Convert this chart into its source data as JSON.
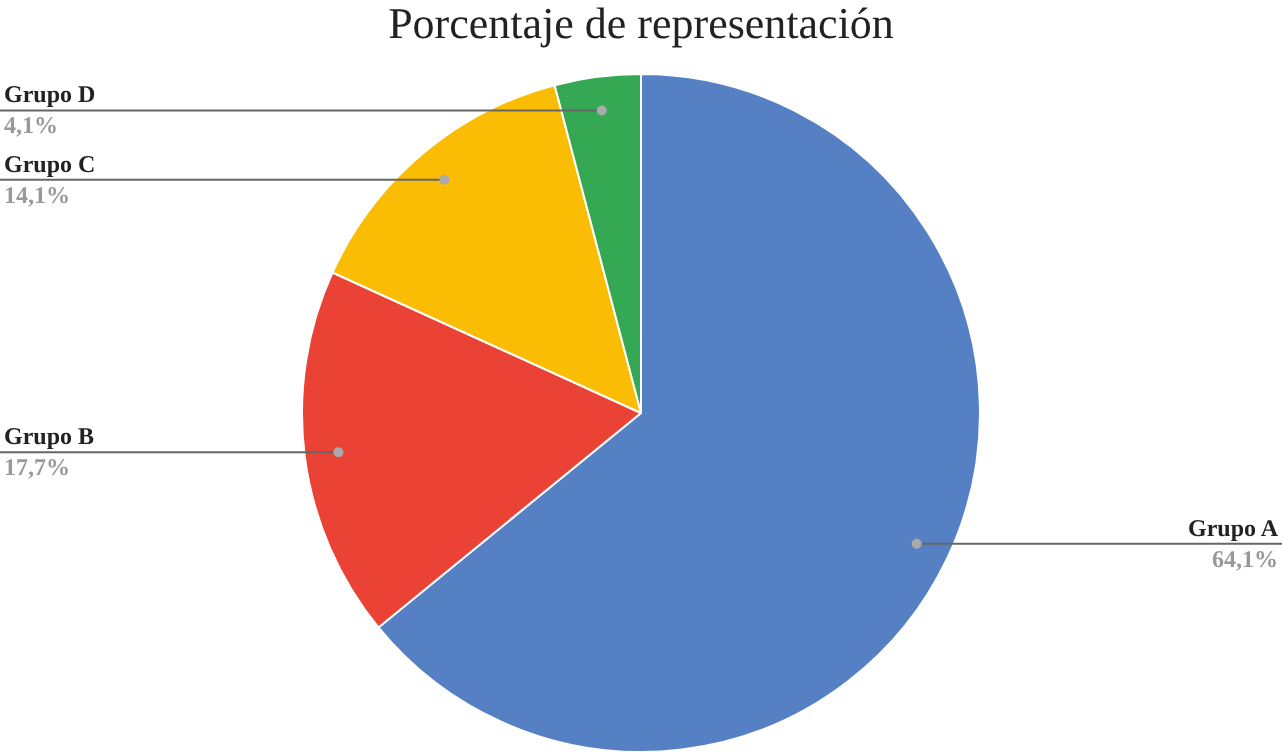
{
  "chart_data": {
    "type": "pie",
    "title": "Porcentaje de representación",
    "categories": [
      "Grupo A",
      "Grupo B",
      "Grupo C",
      "Grupo D"
    ],
    "values": [
      64.1,
      17.7,
      14.1,
      4.1
    ],
    "value_labels": [
      "64,1%",
      "17,7%",
      "14,1%",
      "4,1%"
    ],
    "colors": [
      "#5580c3",
      "#ea4335",
      "#fbbc04",
      "#34a853"
    ],
    "legend": false
  }
}
